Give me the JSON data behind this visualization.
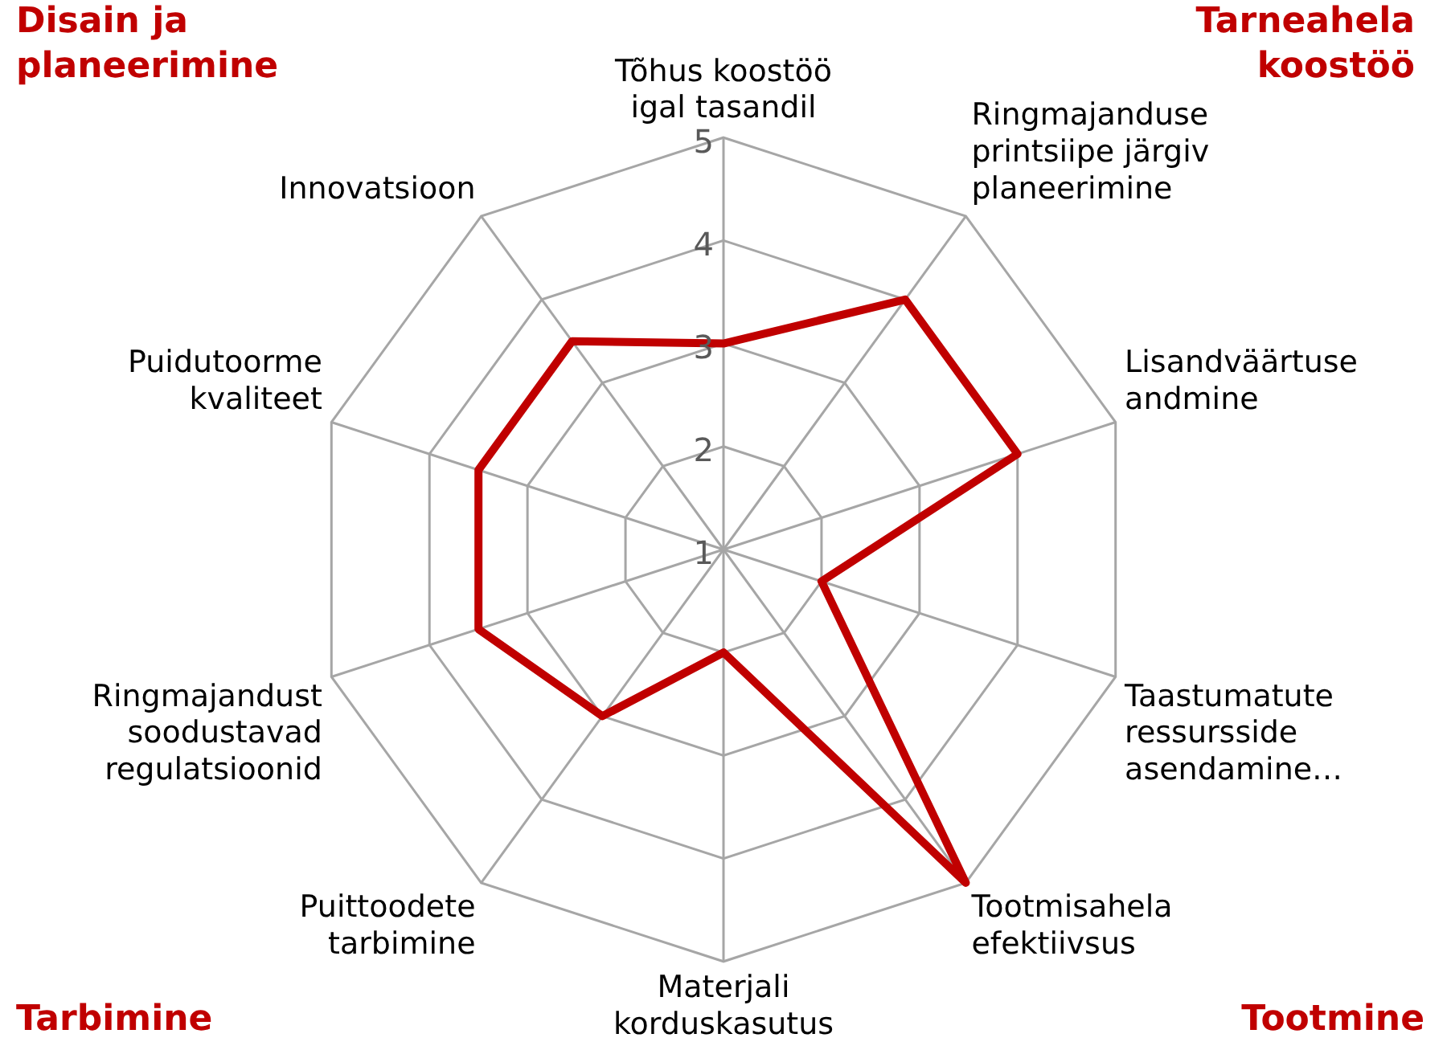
{
  "chart_data": {
    "type": "radar",
    "categories": [
      "Tõhus koostöö igal tasandil",
      "Ringmajanduse printsiipe järgiv planeerimine",
      "Lisandväärtuse andmine",
      "Taastumatute ressursside asendamine…",
      "Tootmisahela efektiivsus",
      "Materjali korduskasutus",
      "Puittoodete tarbimine",
      "Ringmajandust soodustavad regulatsioonid",
      "Puidutoorme kvaliteet",
      "Innovatsioon"
    ],
    "series": [
      {
        "color": "#c00000",
        "values": [
          3,
          4,
          4,
          2,
          5,
          2,
          3,
          3.5,
          3.5,
          3.5
        ]
      }
    ],
    "ylim": [
      1,
      5
    ],
    "yticks": [
      1,
      2,
      3,
      4,
      5
    ],
    "grid": true,
    "marker": "none",
    "line_style": "solid",
    "annotations": [
      "Disain ja planeerimine",
      "Tarneahela koostöö",
      "Tarbimine",
      "Tootmine"
    ]
  }
}
